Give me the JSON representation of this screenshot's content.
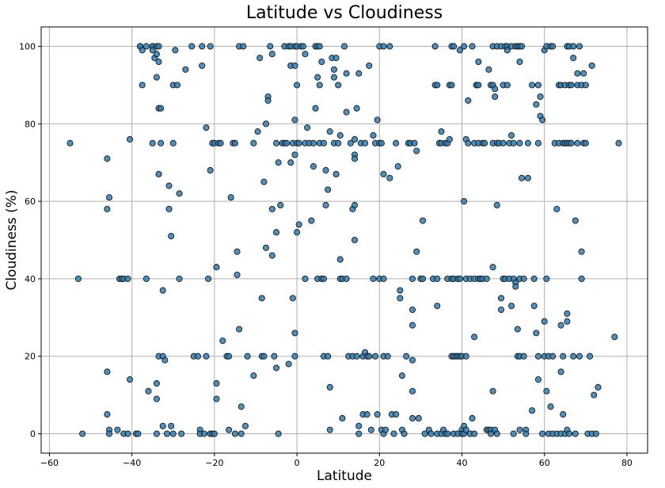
{
  "chart_data": {
    "type": "scatter",
    "title": "Latitude vs Cloudiness",
    "xlabel": "Latitude",
    "ylabel": "Cloudiness (%)",
    "xlim": [
      -62,
      85
    ],
    "ylim": [
      -5,
      105
    ],
    "xticks": [
      -60,
      -40,
      -20,
      0,
      20,
      40,
      60,
      80
    ],
    "yticks": [
      0,
      20,
      40,
      60,
      80,
      100
    ],
    "grid": true,
    "marker_color": "#2f7db3",
    "marker_edge": "#1a1a1a",
    "points": [
      [
        -55,
        75
      ],
      [
        -53,
        40
      ],
      [
        -52,
        0
      ],
      [
        -46,
        71
      ],
      [
        -46,
        58
      ],
      [
        -45.5,
        61
      ],
      [
        -46,
        16
      ],
      [
        -46,
        5
      ],
      [
        -45.5,
        1
      ],
      [
        -45.5,
        0
      ],
      [
        -43.5,
        1
      ],
      [
        -43,
        40
      ],
      [
        -42.5,
        40
      ],
      [
        -42,
        40
      ],
      [
        -42,
        0
      ],
      [
        -41,
        40
      ],
      [
        -41,
        0
      ],
      [
        -40.5,
        76
      ],
      [
        -40.5,
        14
      ],
      [
        -39,
        0
      ],
      [
        -38.5,
        0
      ],
      [
        -38,
        100
      ],
      [
        -38,
        100
      ],
      [
        -37.5,
        99
      ],
      [
        -37.5,
        90
      ],
      [
        -36.5,
        100
      ],
      [
        -36.5,
        40
      ],
      [
        -36,
        11
      ],
      [
        -35,
        100
      ],
      [
        -35,
        100
      ],
      [
        -35,
        99
      ],
      [
        -35,
        75
      ],
      [
        -34.5,
        97
      ],
      [
        -34,
        98
      ],
      [
        -34,
        92
      ],
      [
        -34,
        100
      ],
      [
        -34,
        13
      ],
      [
        -34,
        9
      ],
      [
        -34,
        0
      ],
      [
        -33.5,
        100
      ],
      [
        -33.5,
        96
      ],
      [
        -33.5,
        84
      ],
      [
        -33.5,
        67
      ],
      [
        -33.5,
        20
      ],
      [
        -33,
        84
      ],
      [
        -33,
        75
      ],
      [
        -32.5,
        20
      ],
      [
        -32.5,
        37
      ],
      [
        -32.5,
        2
      ],
      [
        -32,
        19
      ],
      [
        -31.5,
        0
      ],
      [
        -31,
        64
      ],
      [
        -31,
        58
      ],
      [
        -30.5,
        51
      ],
      [
        -30.5,
        2
      ],
      [
        -30,
        90
      ],
      [
        -30,
        75
      ],
      [
        -30,
        0
      ],
      [
        -29.5,
        99
      ],
      [
        -29,
        90
      ],
      [
        -28.5,
        62
      ],
      [
        -28.5,
        40
      ],
      [
        -28,
        0
      ],
      [
        -27,
        94
      ],
      [
        -25.5,
        100
      ],
      [
        -25,
        20
      ],
      [
        -24,
        20
      ],
      [
        -23.5,
        1
      ],
      [
        -23.5,
        0
      ],
      [
        -23,
        95
      ],
      [
        -23,
        100
      ],
      [
        -22.5,
        0
      ],
      [
        -22,
        79
      ],
      [
        -22,
        20
      ],
      [
        -21.5,
        40
      ],
      [
        -21,
        100
      ],
      [
        -21,
        68
      ],
      [
        -21,
        0
      ],
      [
        -20.5,
        75
      ],
      [
        -20.5,
        0
      ],
      [
        -20,
        75
      ],
      [
        -20,
        0
      ],
      [
        -19.5,
        43
      ],
      [
        -19.5,
        13
      ],
      [
        -19.5,
        9
      ],
      [
        -19,
        75
      ],
      [
        -18.5,
        75
      ],
      [
        -18,
        24
      ],
      [
        -17,
        20
      ],
      [
        -16.5,
        20
      ],
      [
        -16.5,
        1
      ],
      [
        -16,
        61
      ],
      [
        -15.5,
        75
      ],
      [
        -15,
        75
      ],
      [
        -15,
        0
      ],
      [
        -14.5,
        47
      ],
      [
        -14.5,
        41
      ],
      [
        -14,
        100
      ],
      [
        -14,
        27
      ],
      [
        -13.5,
        7
      ],
      [
        -13.5,
        0
      ],
      [
        -13,
        100
      ],
      [
        -12.5,
        2
      ],
      [
        -12,
        20
      ],
      [
        -10.5,
        75
      ],
      [
        -10.5,
        15
      ],
      [
        -9.5,
        78
      ],
      [
        -9,
        97
      ],
      [
        -8.5,
        35
      ],
      [
        -8.5,
        20
      ],
      [
        -8,
        65
      ],
      [
        -8,
        20
      ],
      [
        -7.5,
        80
      ],
      [
        -7.5,
        48
      ],
      [
        -7,
        87
      ],
      [
        -7,
        86
      ],
      [
        -6.5,
        100
      ],
      [
        -6,
        98
      ],
      [
        -6,
        58
      ],
      [
        -6,
        46
      ],
      [
        -5.5,
        20
      ],
      [
        -5,
        75
      ],
      [
        -5,
        52
      ],
      [
        -5,
        17
      ],
      [
        -4.5,
        70
      ],
      [
        -4.5,
        0
      ],
      [
        -4,
        59
      ],
      [
        -3.5,
        75
      ],
      [
        -3,
        75
      ],
      [
        -3,
        100
      ],
      [
        -2.5,
        75
      ],
      [
        -2,
        100
      ],
      [
        -2,
        18
      ],
      [
        -1.5,
        100
      ],
      [
        -1.5,
        95
      ],
      [
        -1.5,
        70
      ],
      [
        -1,
        75
      ],
      [
        -1,
        35
      ],
      [
        -0.5,
        100
      ],
      [
        -0.5,
        95
      ],
      [
        -0.5,
        81
      ],
      [
        -0.5,
        72
      ],
      [
        -0.5,
        26
      ],
      [
        -0.5,
        20
      ],
      [
        0,
        100
      ],
      [
        0,
        90
      ],
      [
        0,
        75
      ],
      [
        0,
        52
      ],
      [
        0.5,
        75
      ],
      [
        0.5,
        54
      ],
      [
        1,
        100
      ],
      [
        1.5,
        100
      ],
      [
        2,
        98
      ],
      [
        2,
        75
      ],
      [
        2,
        40
      ],
      [
        2.5,
        79
      ],
      [
        3,
        75
      ],
      [
        3.5,
        55
      ],
      [
        4,
        69
      ],
      [
        4,
        75
      ],
      [
        4.5,
        100
      ],
      [
        4.5,
        84
      ],
      [
        5,
        100
      ],
      [
        5,
        92
      ],
      [
        5,
        40
      ],
      [
        5.5,
        90
      ],
      [
        5.5,
        75
      ],
      [
        5.5,
        100
      ],
      [
        6,
        96
      ],
      [
        6,
        40
      ],
      [
        6.5,
        75
      ],
      [
        6.5,
        40
      ],
      [
        6.5,
        20
      ],
      [
        7,
        68
      ],
      [
        7,
        59
      ],
      [
        7.5,
        20
      ],
      [
        7.5,
        63
      ],
      [
        8,
        1
      ],
      [
        8,
        12
      ],
      [
        8,
        78
      ],
      [
        8.5,
        97
      ],
      [
        9,
        94
      ],
      [
        9,
        75
      ],
      [
        9,
        92
      ],
      [
        9.5,
        97
      ],
      [
        9.5,
        67
      ],
      [
        10,
        90
      ],
      [
        10,
        75
      ],
      [
        10.5,
        77
      ],
      [
        10.5,
        45
      ],
      [
        10.5,
        40
      ],
      [
        11,
        4
      ],
      [
        11,
        40
      ],
      [
        11.5,
        100
      ],
      [
        12,
        40
      ],
      [
        12,
        83
      ],
      [
        12,
        93
      ],
      [
        12.5,
        20
      ],
      [
        13,
        75
      ],
      [
        13.5,
        58
      ],
      [
        13.5,
        20
      ],
      [
        14,
        76
      ],
      [
        14,
        59
      ],
      [
        14,
        72
      ],
      [
        14,
        71
      ],
      [
        14,
        50
      ],
      [
        14.5,
        84
      ],
      [
        14.5,
        20
      ],
      [
        15,
        93
      ],
      [
        15,
        2
      ],
      [
        15,
        0
      ],
      [
        15.5,
        75
      ],
      [
        16,
        20
      ],
      [
        16,
        5
      ],
      [
        16.5,
        75
      ],
      [
        16.5,
        21
      ],
      [
        17,
        20
      ],
      [
        17,
        5
      ],
      [
        17.5,
        95
      ],
      [
        17.5,
        20
      ],
      [
        18,
        1
      ],
      [
        18.5,
        77
      ],
      [
        18.5,
        40
      ],
      [
        19,
        75
      ],
      [
        19,
        20
      ],
      [
        19.5,
        81
      ],
      [
        19.5,
        5
      ],
      [
        20,
        100
      ],
      [
        20,
        75
      ],
      [
        20,
        40
      ],
      [
        20.5,
        75
      ],
      [
        20.5,
        1
      ],
      [
        21,
        100
      ],
      [
        21,
        67
      ],
      [
        21,
        40
      ],
      [
        21,
        20
      ],
      [
        21,
        0
      ],
      [
        21.5,
        1
      ],
      [
        22,
        20
      ],
      [
        22.5,
        66
      ],
      [
        22.5,
        100
      ],
      [
        23,
        5
      ],
      [
        23.5,
        0
      ],
      [
        24,
        5
      ],
      [
        24,
        75
      ],
      [
        24.5,
        69
      ],
      [
        25,
        37
      ],
      [
        25,
        35
      ],
      [
        25.5,
        15
      ],
      [
        25.5,
        1
      ],
      [
        26,
        0
      ],
      [
        26.5,
        20
      ],
      [
        27,
        75
      ],
      [
        27.5,
        75
      ],
      [
        28,
        40
      ],
      [
        28,
        32
      ],
      [
        28,
        28
      ],
      [
        28,
        19
      ],
      [
        28,
        11
      ],
      [
        28,
        4
      ],
      [
        28.5,
        75
      ],
      [
        29,
        73
      ],
      [
        29,
        47
      ],
      [
        29.5,
        4
      ],
      [
        30,
        40
      ],
      [
        30.5,
        55
      ],
      [
        30.5,
        40
      ],
      [
        31,
        0
      ],
      [
        32,
        1
      ],
      [
        32.5,
        0
      ],
      [
        33,
        40
      ],
      [
        33.5,
        100
      ],
      [
        33.5,
        90
      ],
      [
        34,
        90
      ],
      [
        34,
        40
      ],
      [
        34,
        33
      ],
      [
        34,
        0
      ],
      [
        34.5,
        75
      ],
      [
        35,
        78
      ],
      [
        35,
        75
      ],
      [
        35,
        0
      ],
      [
        35.5,
        1
      ],
      [
        36,
        75
      ],
      [
        36,
        0
      ],
      [
        36.5,
        75
      ],
      [
        36.5,
        40
      ],
      [
        36.5,
        0
      ],
      [
        37,
        76
      ],
      [
        37,
        90
      ],
      [
        37.5,
        100
      ],
      [
        37.5,
        90
      ],
      [
        37.5,
        40
      ],
      [
        37.5,
        20
      ],
      [
        38,
        100
      ],
      [
        38,
        40
      ],
      [
        38,
        20
      ],
      [
        38,
        0
      ],
      [
        38.5,
        20
      ],
      [
        39,
        40
      ],
      [
        39,
        20
      ],
      [
        39,
        0
      ],
      [
        39.5,
        99
      ],
      [
        39.5,
        40
      ],
      [
        39.5,
        20
      ],
      [
        40,
        20
      ],
      [
        40,
        1
      ],
      [
        40,
        0
      ],
      [
        40.5,
        100
      ],
      [
        40.5,
        60
      ],
      [
        40.5,
        2
      ],
      [
        40.5,
        0
      ],
      [
        41,
        76
      ],
      [
        41,
        40
      ],
      [
        41,
        20
      ],
      [
        41,
        1
      ],
      [
        41.5,
        75
      ],
      [
        41.5,
        86
      ],
      [
        42,
        40
      ],
      [
        42,
        0
      ],
      [
        42.5,
        4
      ],
      [
        42.5,
        100
      ],
      [
        43,
        75
      ],
      [
        43,
        40
      ],
      [
        43,
        25
      ],
      [
        43,
        0
      ],
      [
        43.5,
        90
      ],
      [
        43.5,
        90
      ],
      [
        44,
        96
      ],
      [
        44,
        90
      ],
      [
        44,
        75
      ],
      [
        44,
        40
      ],
      [
        44.5,
        40
      ],
      [
        45,
        75
      ],
      [
        45,
        40
      ],
      [
        45.5,
        75
      ],
      [
        46,
        40
      ],
      [
        46,
        1
      ],
      [
        46.5,
        94
      ],
      [
        46.5,
        1
      ],
      [
        47,
        90
      ],
      [
        47,
        1
      ],
      [
        47,
        0
      ],
      [
        47.5,
        100
      ],
      [
        47.5,
        90
      ],
      [
        47.5,
        75
      ],
      [
        47.5,
        43
      ],
      [
        47.5,
        11
      ],
      [
        48,
        89
      ],
      [
        48,
        87
      ],
      [
        48,
        1
      ],
      [
        48.5,
        100
      ],
      [
        48.5,
        75
      ],
      [
        48.5,
        59
      ],
      [
        48.5,
        0
      ],
      [
        49,
        75
      ],
      [
        49.5,
        100
      ],
      [
        49.5,
        35
      ],
      [
        49.5,
        32
      ],
      [
        50,
        90
      ],
      [
        50,
        75
      ],
      [
        50,
        40
      ],
      [
        50.5,
        100
      ],
      [
        50.5,
        40
      ],
      [
        51,
        100
      ],
      [
        51,
        99
      ],
      [
        51,
        90
      ],
      [
        51.5,
        75
      ],
      [
        51.5,
        40
      ],
      [
        52,
        100
      ],
      [
        52,
        77
      ],
      [
        52,
        33
      ],
      [
        52.5,
        75
      ],
      [
        52.5,
        40
      ],
      [
        52.5,
        0
      ],
      [
        53,
        100
      ],
      [
        53,
        39
      ],
      [
        53,
        38
      ],
      [
        53.5,
        100
      ],
      [
        53.5,
        27
      ],
      [
        53.5,
        20
      ],
      [
        54,
        100
      ],
      [
        54,
        96
      ],
      [
        54,
        75
      ],
      [
        54,
        40
      ],
      [
        54,
        20
      ],
      [
        54,
        1
      ],
      [
        54.5,
        100
      ],
      [
        54.5,
        66
      ],
      [
        55,
        20
      ],
      [
        55,
        40
      ],
      [
        55.5,
        1
      ],
      [
        55.5,
        0
      ],
      [
        56,
        75
      ],
      [
        56,
        66
      ],
      [
        57,
        90
      ],
      [
        57,
        6
      ],
      [
        57.5,
        40
      ],
      [
        57.5,
        33
      ],
      [
        58,
        85
      ],
      [
        58,
        26
      ],
      [
        58.5,
        90
      ],
      [
        58.5,
        75
      ],
      [
        58.5,
        20
      ],
      [
        58.5,
        14
      ],
      [
        59,
        87
      ],
      [
        59,
        82
      ],
      [
        59.5,
        81
      ],
      [
        59.5,
        0
      ],
      [
        60,
        99
      ],
      [
        60,
        29
      ],
      [
        60,
        20
      ],
      [
        60.5,
        100
      ],
      [
        60.5,
        40
      ],
      [
        60.5,
        11
      ],
      [
        61,
        20
      ],
      [
        61,
        0
      ],
      [
        61.5,
        100
      ],
      [
        61.5,
        7
      ],
      [
        62,
        100
      ],
      [
        62,
        20
      ],
      [
        62,
        0
      ],
      [
        62.5,
        75
      ],
      [
        63,
        58
      ],
      [
        63,
        0
      ],
      [
        63.5,
        90
      ],
      [
        63.5,
        75
      ],
      [
        64,
        90
      ],
      [
        64,
        28
      ],
      [
        64,
        16
      ],
      [
        64,
        0
      ],
      [
        64.5,
        75
      ],
      [
        64.5,
        20
      ],
      [
        64.5,
        5
      ],
      [
        65,
        90
      ],
      [
        65,
        75
      ],
      [
        65,
        0
      ],
      [
        65.5,
        100
      ],
      [
        65.5,
        75
      ],
      [
        65.5,
        29
      ],
      [
        65.5,
        31
      ],
      [
        65.5,
        1
      ],
      [
        66,
        100
      ],
      [
        66,
        90
      ],
      [
        66,
        75
      ],
      [
        66,
        0
      ],
      [
        66.5,
        90
      ],
      [
        66.5,
        75
      ],
      [
        67,
        97
      ],
      [
        67,
        100
      ],
      [
        67,
        20
      ],
      [
        67.5,
        55
      ],
      [
        67.5,
        0
      ],
      [
        68,
        75
      ],
      [
        68,
        93
      ],
      [
        68,
        90
      ],
      [
        68.5,
        100
      ],
      [
        68.5,
        20
      ],
      [
        69,
        90
      ],
      [
        69,
        47
      ],
      [
        69,
        40
      ],
      [
        69.5,
        93
      ],
      [
        69.5,
        75
      ],
      [
        70,
        90
      ],
      [
        70,
        75
      ],
      [
        70.5,
        0
      ],
      [
        71,
        20
      ],
      [
        71.5,
        95
      ],
      [
        71.5,
        0
      ],
      [
        72,
        10
      ],
      [
        72.5,
        0
      ],
      [
        73,
        12
      ],
      [
        77,
        25
      ],
      [
        78,
        75
      ]
    ]
  }
}
